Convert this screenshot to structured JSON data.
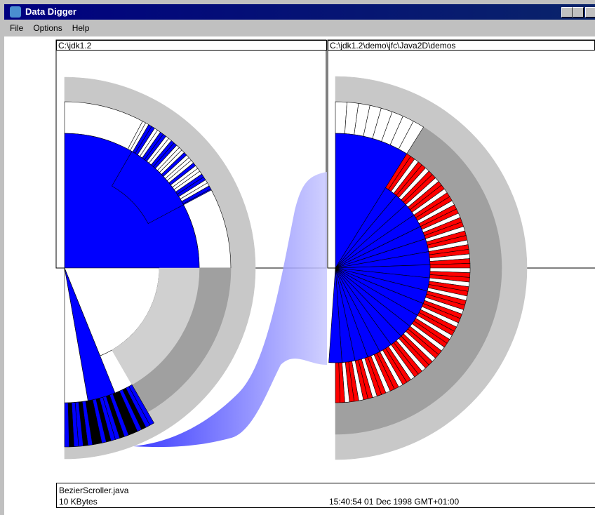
{
  "window": {
    "title": "Data Digger"
  },
  "menu": [
    "File",
    "Options",
    "Help"
  ],
  "panels": [
    {
      "path": "C:\\jdk1.2"
    },
    {
      "path": "C:\\jdk1.2\\demo\\jfc\\Java2D\\demos"
    }
  ],
  "status": {
    "file": "BezierScroller.java",
    "size": "10 KBytes",
    "time": "15:40:54  01 Dec 1998 GMT+01:00"
  }
}
